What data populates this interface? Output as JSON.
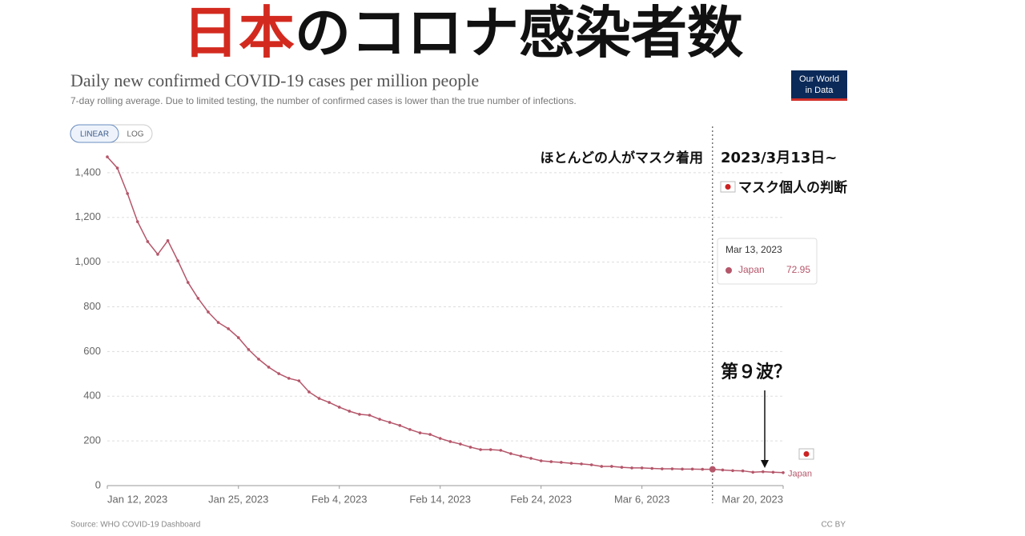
{
  "headline": {
    "highlight": "日本",
    "rest": "のコロナ感染者数"
  },
  "logo": {
    "line1": "Our World",
    "line2": "in Data"
  },
  "buttons": [
    "LINEAR",
    "LOG"
  ],
  "source": "Source: WHO COVID-19 Dashboard",
  "license": "CC BY",
  "chart_data": {
    "type": "line",
    "title": "Daily new confirmed COVID-19 cases per million people",
    "subtitle": "7-day rolling average. Due to limited testing, the number of confirmed cases is lower than the true number of infections.",
    "x": [
      "2023-01-12",
      "2023-01-13",
      "2023-01-14",
      "2023-01-15",
      "2023-01-16",
      "2023-01-17",
      "2023-01-18",
      "2023-01-19",
      "2023-01-20",
      "2023-01-21",
      "2023-01-22",
      "2023-01-23",
      "2023-01-24",
      "2023-01-25",
      "2023-01-26",
      "2023-01-27",
      "2023-01-28",
      "2023-01-29",
      "2023-01-30",
      "2023-01-31",
      "2023-02-01",
      "2023-02-02",
      "2023-02-03",
      "2023-02-04",
      "2023-02-05",
      "2023-02-06",
      "2023-02-07",
      "2023-02-08",
      "2023-02-09",
      "2023-02-10",
      "2023-02-11",
      "2023-02-12",
      "2023-02-13",
      "2023-02-14",
      "2023-02-15",
      "2023-02-16",
      "2023-02-17",
      "2023-02-18",
      "2023-02-19",
      "2023-02-20",
      "2023-02-21",
      "2023-02-22",
      "2023-02-23",
      "2023-02-24",
      "2023-02-25",
      "2023-02-26",
      "2023-02-27",
      "2023-02-28",
      "2023-03-01",
      "2023-03-02",
      "2023-03-03",
      "2023-03-04",
      "2023-03-05",
      "2023-03-06",
      "2023-03-07",
      "2023-03-08",
      "2023-03-09",
      "2023-03-10",
      "2023-03-11",
      "2023-03-12",
      "2023-03-13",
      "2023-03-14",
      "2023-03-15",
      "2023-03-16",
      "2023-03-17",
      "2023-03-18",
      "2023-03-19",
      "2023-03-20"
    ],
    "series": [
      {
        "name": "Japan",
        "color": "#b5566a",
        "values": [
          1471,
          1421,
          1307,
          1181,
          1092,
          1035,
          1096,
          1006,
          909,
          838,
          777,
          730,
          702,
          662,
          609,
          566,
          530,
          501,
          480,
          469,
          419,
          390,
          372,
          351,
          333,
          319,
          315,
          297,
          283,
          269,
          251,
          236,
          229,
          211,
          197,
          186,
          172,
          161,
          161,
          158,
          143,
          132,
          122,
          111,
          107,
          104,
          100,
          97,
          93,
          86,
          86,
          82,
          79,
          79,
          77,
          75,
          75,
          74,
          74,
          73,
          72.95,
          70,
          67,
          66,
          60,
          62,
          60,
          58
        ]
      }
    ],
    "xlim": [
      "2023-01-12",
      "2023-03-20"
    ],
    "xticks": [
      {
        "value": "2023-01-12",
        "label": "Jan 12, 2023"
      },
      {
        "value": "2023-01-25",
        "label": "Jan 25, 2023"
      },
      {
        "value": "2023-02-04",
        "label": "Feb 4, 2023"
      },
      {
        "value": "2023-02-14",
        "label": "Feb 14, 2023"
      },
      {
        "value": "2023-02-24",
        "label": "Feb 24, 2023"
      },
      {
        "value": "2023-03-06",
        "label": "Mar 6, 2023"
      },
      {
        "value": "2023-03-20",
        "label": "Mar 20, 2023"
      }
    ],
    "ylim": [
      0,
      1500
    ],
    "yticks": [
      0,
      200,
      400,
      600,
      800,
      {
        "value": 1000,
        "label": "1,000"
      },
      {
        "value": 1200,
        "label": "1,200"
      },
      {
        "value": 1400,
        "label": "1,400"
      }
    ],
    "grid": true,
    "event": {
      "x": "2023-03-13",
      "index": 60,
      "tooltip_date": "Mar 13, 2023"
    },
    "annotations": {
      "before": "ほとんどの人がマスク着用",
      "date": "2023/3月13日~",
      "after": "マスク個人の判断",
      "wave": "第９波？"
    }
  }
}
